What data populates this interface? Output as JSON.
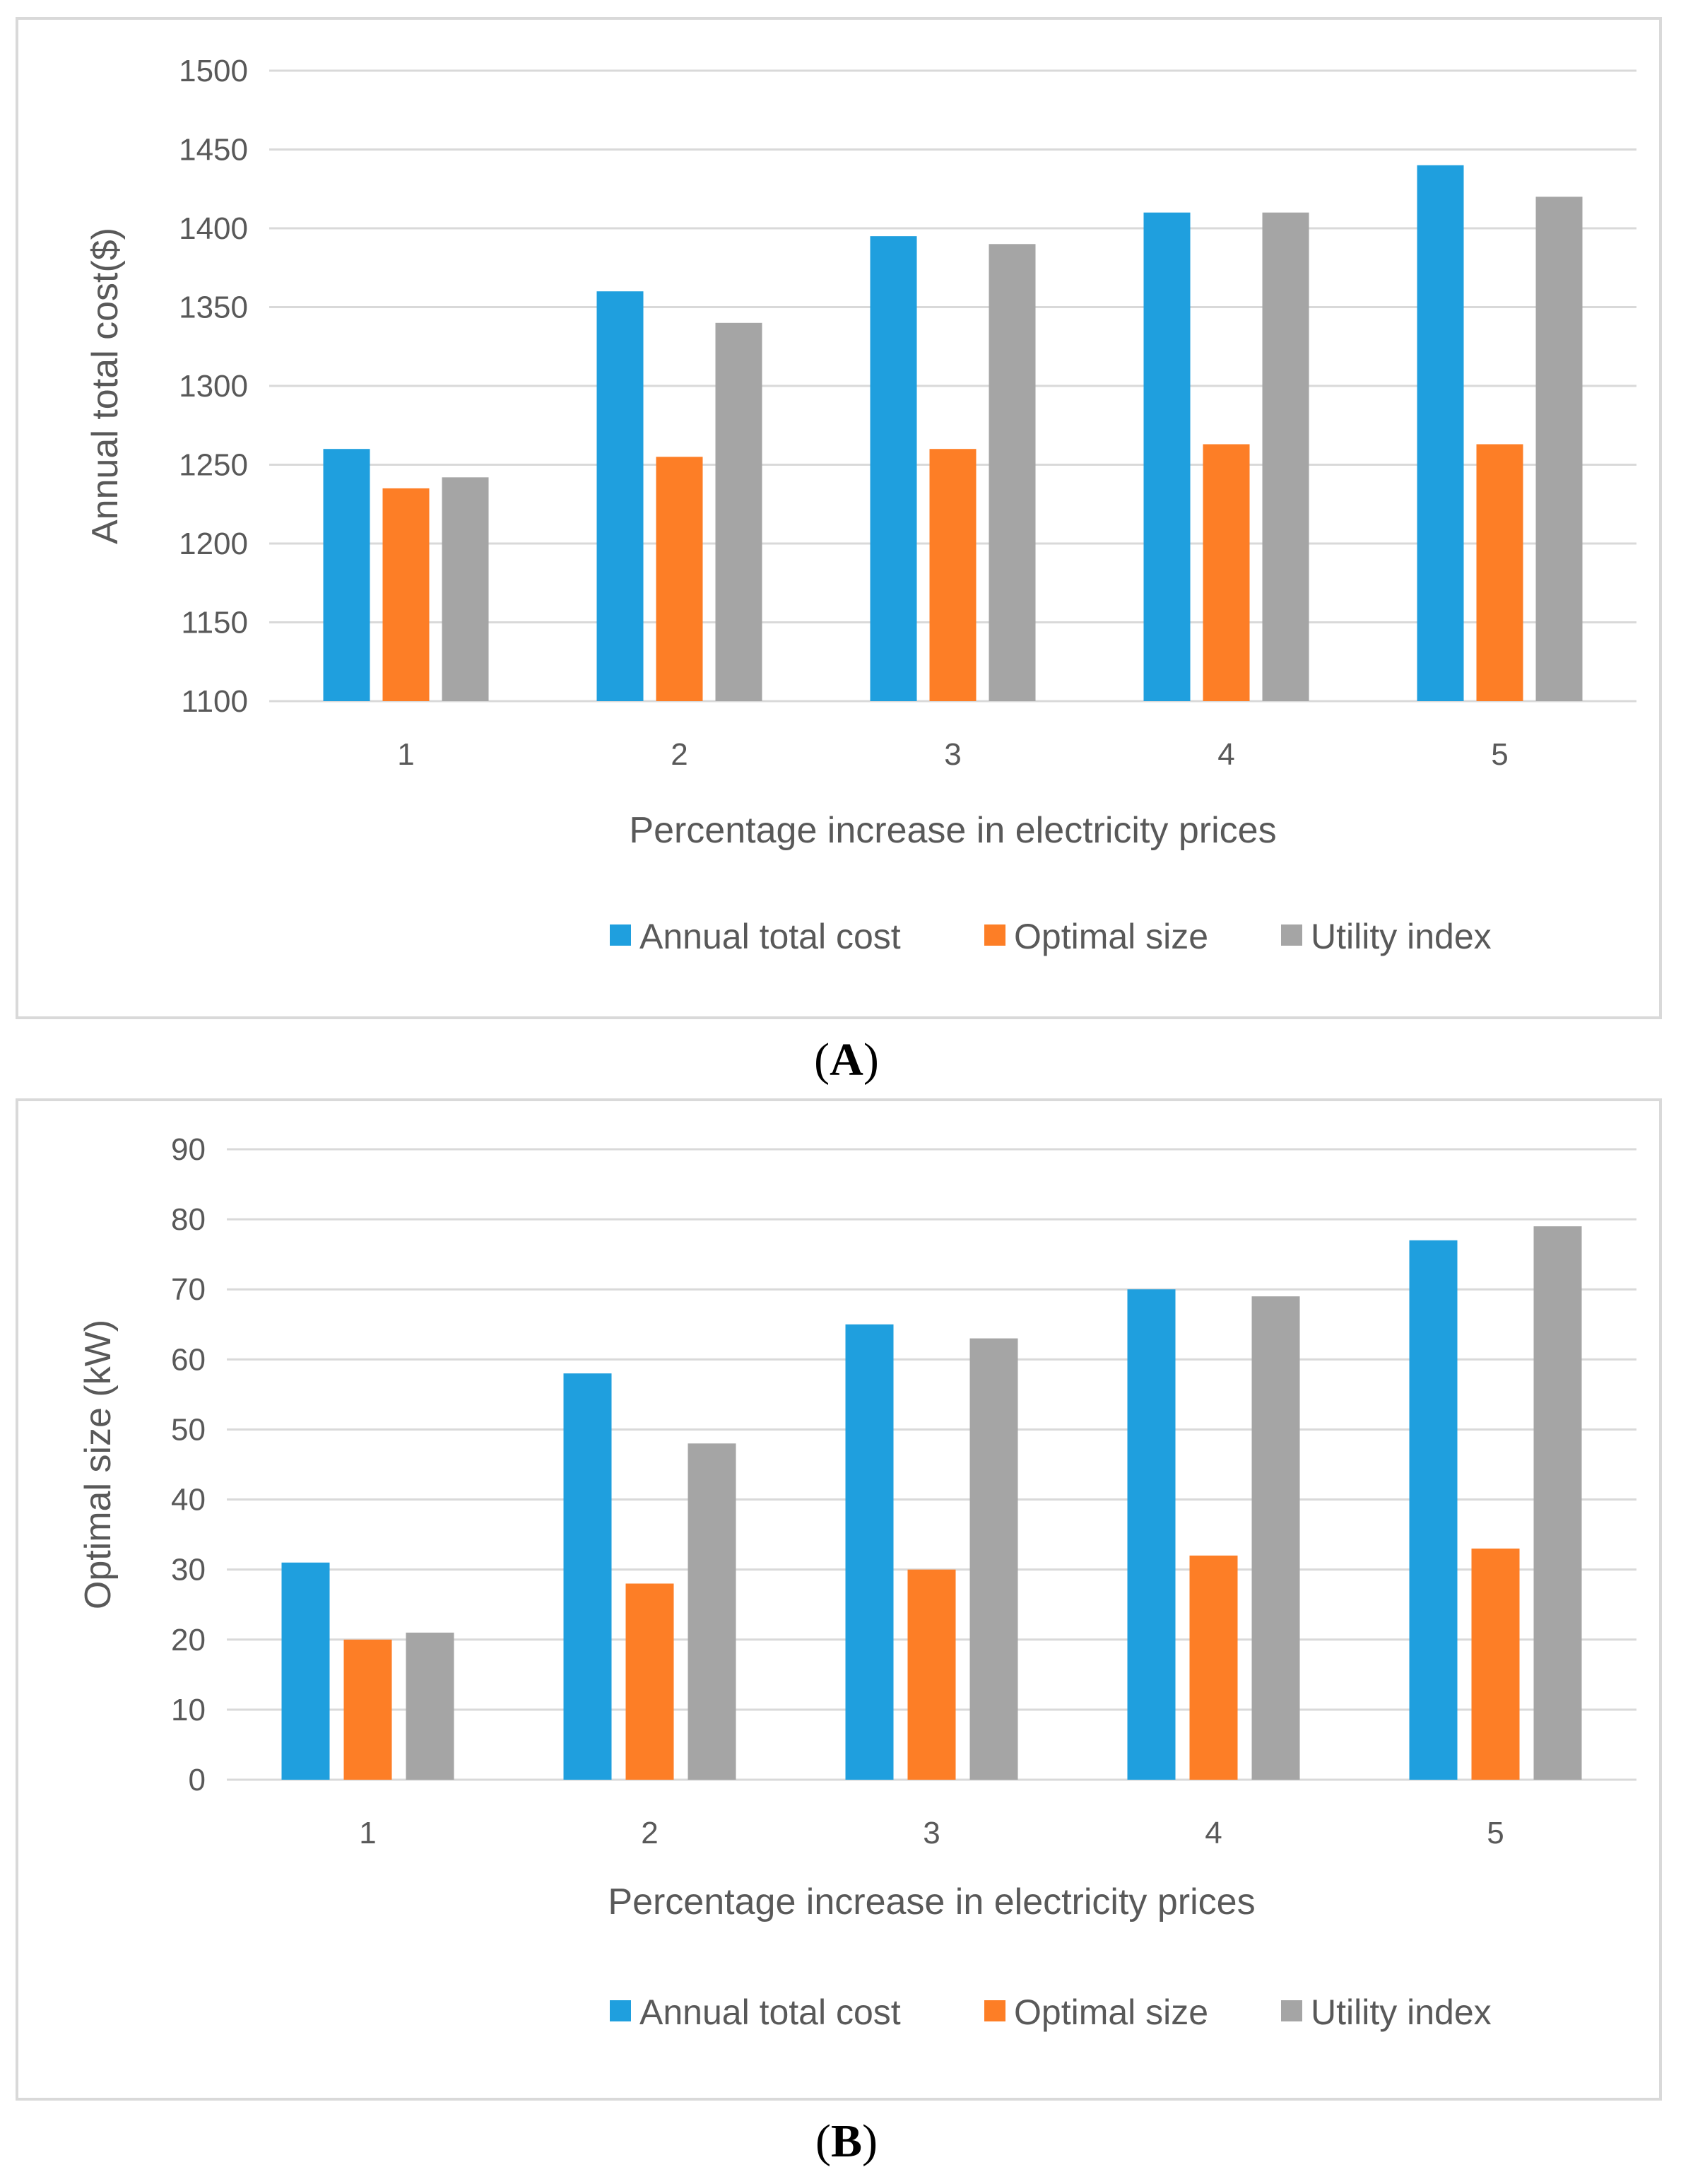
{
  "colors": {
    "annual": "#1f9fde",
    "optimal": "#fd7e26",
    "utility": "#a5a5a5",
    "grid": "#d9d9d9",
    "text": "#595959"
  },
  "chart_data": [
    {
      "type": "bar",
      "panel_label": "A",
      "categories": [
        "1",
        "2",
        "3",
        "4",
        "5"
      ],
      "xlabel": "Percentage increase in electricity prices",
      "ylabel": "Annual total cost($)",
      "ylim": [
        1100,
        1500
      ],
      "ystep": 50,
      "grid": true,
      "legend": "bottom",
      "series": [
        {
          "name": "Annual total cost",
          "color_key": "annual",
          "values": [
            1260,
            1360,
            1395,
            1410,
            1440
          ]
        },
        {
          "name": "Optimal size",
          "color_key": "optimal",
          "values": [
            1235,
            1255,
            1260,
            1263,
            1263
          ]
        },
        {
          "name": "Utility index",
          "color_key": "utility",
          "values": [
            1242,
            1340,
            1390,
            1410,
            1420
          ]
        }
      ]
    },
    {
      "type": "bar",
      "panel_label": "B",
      "categories": [
        "1",
        "2",
        "3",
        "4",
        "5"
      ],
      "xlabel": "Percentage increase in electricity prices",
      "ylabel": "Optimal size (kW)",
      "ylim": [
        0,
        90
      ],
      "ystep": 10,
      "grid": true,
      "legend": "bottom",
      "series": [
        {
          "name": "Annual total cost",
          "color_key": "annual",
          "values": [
            31,
            58,
            65,
            70,
            77
          ]
        },
        {
          "name": "Optimal size",
          "color_key": "optimal",
          "values": [
            20,
            28,
            30,
            32,
            33
          ]
        },
        {
          "name": "Utility index",
          "color_key": "utility",
          "values": [
            21,
            48,
            63,
            69,
            79
          ]
        }
      ]
    }
  ]
}
